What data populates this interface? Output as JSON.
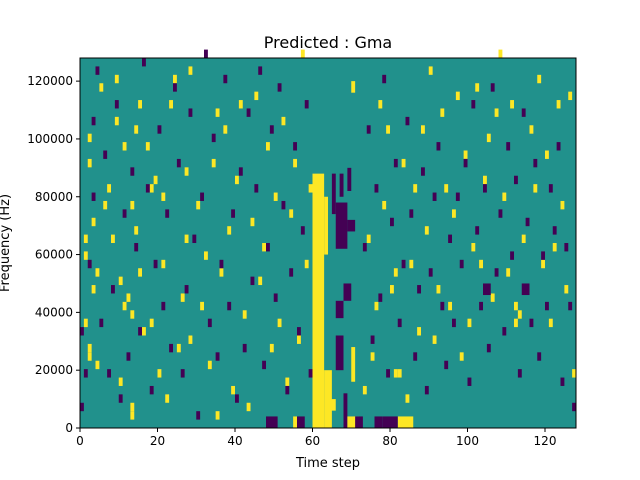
{
  "chart_data": {
    "type": "heatmap",
    "title": "Predicted : Gma",
    "xlabel": "Time step",
    "ylabel": "Frequency (Hz)",
    "xlim": [
      0,
      128
    ],
    "ylim": [
      0,
      128000
    ],
    "x_ticks": [
      0,
      20,
      40,
      60,
      80,
      100,
      120
    ],
    "y_ticks": [
      0,
      20000,
      40000,
      60000,
      80000,
      100000,
      120000
    ],
    "grid": false,
    "legend": "none",
    "colormap": "viridis",
    "colors": {
      "low": "#440154",
      "mid": "#21918c",
      "high": "#fde725"
    },
    "background_value": 0.5,
    "n_time_steps": 128,
    "n_freq_bins": 44,
    "freq_bin_hz": 2909,
    "runs": [
      {
        "x": [
          60,
          63
        ],
        "f": [
          0,
          88000
        ],
        "v": 1
      },
      {
        "x": [
          63,
          65
        ],
        "f": [
          0,
          20000
        ],
        "v": 1
      },
      {
        "x": [
          63,
          64
        ],
        "f": [
          60000,
          80000
        ],
        "v": 1
      },
      {
        "x": [
          64,
          66
        ],
        "f": [
          6000,
          10000
        ],
        "v": 1
      },
      {
        "x": [
          65,
          66
        ],
        "f": [
          74000,
          88000
        ],
        "v": 0
      },
      {
        "x": [
          66,
          68
        ],
        "f": [
          20000,
          32000
        ],
        "v": 0
      },
      {
        "x": [
          66,
          68
        ],
        "f": [
          38000,
          44000
        ],
        "v": 0
      },
      {
        "x": [
          66,
          69
        ],
        "f": [
          62000,
          78000
        ],
        "v": 0
      },
      {
        "x": [
          67,
          68
        ],
        "f": [
          80000,
          88000
        ],
        "v": 0
      },
      {
        "x": [
          68,
          69
        ],
        "f": [
          0,
          12000
        ],
        "v": 0
      },
      {
        "x": [
          68,
          70
        ],
        "f": [
          44000,
          50000
        ],
        "v": 0
      },
      {
        "x": [
          69,
          70
        ],
        "f": [
          82000,
          90000
        ],
        "v": 0
      },
      {
        "x": [
          69,
          71
        ],
        "f": [
          68000,
          72000
        ],
        "v": 0
      },
      {
        "x": [
          69,
          72
        ],
        "f": [
          0,
          4000
        ],
        "v": 1
      },
      {
        "x": [
          70,
          71
        ],
        "f": [
          16000,
          28000
        ],
        "v": 1
      },
      {
        "x": [
          71,
          73
        ],
        "f": [
          0,
          4000
        ],
        "v": 0
      },
      {
        "x": [
          48,
          51
        ],
        "f": [
          0,
          4000
        ],
        "v": 0
      },
      {
        "x": [
          82,
          86
        ],
        "f": [
          0,
          4000
        ],
        "v": 1
      },
      {
        "x": [
          78,
          82
        ],
        "f": [
          0,
          4000
        ],
        "v": 0
      },
      {
        "x": [
          76,
          78
        ],
        "f": [
          0,
          4000
        ],
        "v": 0
      },
      {
        "x": [
          70,
          71
        ],
        "f": [
          116000,
          120000
        ],
        "v": 1
      },
      {
        "x": [
          55,
          56
        ],
        "f": [
          0,
          4000
        ],
        "v": 1
      },
      {
        "x": [
          56,
          58
        ],
        "f": [
          0,
          4000
        ],
        "v": 0
      },
      {
        "x": [
          114,
          116
        ],
        "f": [
          46000,
          50000
        ],
        "v": 0
      },
      {
        "x": [
          104,
          106
        ],
        "f": [
          46000,
          50000
        ],
        "v": 0
      }
    ],
    "speckles": {
      "high": [
        [
          1,
          12
        ],
        [
          1,
          20
        ],
        [
          1,
          22
        ],
        [
          2,
          8
        ],
        [
          2,
          9
        ],
        [
          2,
          31
        ],
        [
          2,
          34
        ],
        [
          3,
          16
        ],
        [
          3,
          24
        ],
        [
          4,
          7
        ],
        [
          4,
          18
        ],
        [
          5,
          40
        ],
        [
          6,
          26
        ],
        [
          7,
          28
        ],
        [
          8,
          22
        ],
        [
          9,
          36
        ],
        [
          9,
          41
        ],
        [
          10,
          5
        ],
        [
          10,
          17
        ],
        [
          11,
          14
        ],
        [
          11,
          33
        ],
        [
          12,
          15
        ],
        [
          13,
          1
        ],
        [
          13,
          2
        ],
        [
          13,
          13
        ],
        [
          13,
          26
        ],
        [
          14,
          35
        ],
        [
          14,
          23
        ],
        [
          15,
          18
        ],
        [
          15,
          38
        ],
        [
          16,
          11
        ],
        [
          17,
          33
        ],
        [
          18,
          12
        ],
        [
          18,
          28
        ],
        [
          19,
          29
        ],
        [
          20,
          6
        ],
        [
          21,
          19
        ],
        [
          21,
          27
        ],
        [
          22,
          3
        ],
        [
          23,
          38
        ],
        [
          24,
          41
        ],
        [
          25,
          9
        ],
        [
          26,
          15
        ],
        [
          27,
          22
        ],
        [
          27,
          30
        ],
        [
          28,
          10
        ],
        [
          28,
          42
        ],
        [
          30,
          26
        ],
        [
          31,
          14
        ],
        [
          32,
          20
        ],
        [
          33,
          7
        ],
        [
          34,
          31
        ],
        [
          35,
          1
        ],
        [
          35,
          37
        ],
        [
          36,
          18
        ],
        [
          37,
          35
        ],
        [
          38,
          23
        ],
        [
          39,
          4
        ],
        [
          40,
          29
        ],
        [
          41,
          38
        ],
        [
          42,
          13
        ],
        [
          43,
          2
        ],
        [
          44,
          24
        ],
        [
          45,
          39
        ],
        [
          46,
          17
        ],
        [
          47,
          21
        ],
        [
          48,
          33
        ],
        [
          49,
          9
        ],
        [
          50,
          27
        ],
        [
          51,
          12
        ],
        [
          52,
          36
        ],
        [
          53,
          5
        ],
        [
          54,
          25
        ],
        [
          55,
          31
        ],
        [
          56,
          10
        ],
        [
          57,
          44
        ],
        [
          58,
          19
        ],
        [
          59,
          28
        ],
        [
          73,
          4
        ],
        [
          74,
          22
        ],
        [
          75,
          8
        ],
        [
          76,
          14
        ],
        [
          77,
          38
        ],
        [
          78,
          26
        ],
        [
          79,
          35
        ],
        [
          80,
          16
        ],
        [
          81,
          18
        ],
        [
          81,
          6
        ],
        [
          82,
          6
        ],
        [
          83,
          31
        ],
        [
          84,
          3
        ],
        [
          85,
          19
        ],
        [
          86,
          28
        ],
        [
          87,
          11
        ],
        [
          88,
          35
        ],
        [
          89,
          23
        ],
        [
          90,
          42
        ],
        [
          91,
          10
        ],
        [
          92,
          16
        ],
        [
          93,
          37
        ],
        [
          94,
          28
        ],
        [
          95,
          14
        ],
        [
          96,
          25
        ],
        [
          97,
          39
        ],
        [
          98,
          8
        ],
        [
          99,
          32
        ],
        [
          100,
          12
        ],
        [
          101,
          21
        ],
        [
          102,
          40
        ],
        [
          103,
          19
        ],
        [
          104,
          29
        ],
        [
          105,
          34
        ],
        [
          106,
          15
        ],
        [
          107,
          37
        ],
        [
          108,
          44
        ],
        [
          109,
          27
        ],
        [
          110,
          18
        ],
        [
          111,
          38
        ],
        [
          112,
          12
        ],
        [
          112,
          14
        ],
        [
          113,
          13
        ],
        [
          114,
          22
        ],
        [
          115,
          16
        ],
        [
          116,
          35
        ],
        [
          117,
          28
        ],
        [
          118,
          41
        ],
        [
          119,
          19
        ],
        [
          120,
          32
        ],
        [
          121,
          12
        ],
        [
          122,
          21
        ],
        [
          123,
          38
        ],
        [
          124,
          26
        ],
        [
          125,
          16
        ],
        [
          126,
          39
        ],
        [
          127,
          6
        ]
      ],
      "low": [
        [
          0,
          2
        ],
        [
          0,
          11
        ],
        [
          1,
          6
        ],
        [
          2,
          19
        ],
        [
          3,
          27
        ],
        [
          3,
          36
        ],
        [
          4,
          42
        ],
        [
          5,
          12
        ],
        [
          6,
          32
        ],
        [
          7,
          6
        ],
        [
          8,
          16
        ],
        [
          9,
          38
        ],
        [
          10,
          3
        ],
        [
          11,
          25
        ],
        [
          12,
          8
        ],
        [
          13,
          30
        ],
        [
          14,
          21
        ],
        [
          15,
          11
        ],
        [
          16,
          43
        ],
        [
          17,
          28
        ],
        [
          18,
          4
        ],
        [
          19,
          19
        ],
        [
          20,
          35
        ],
        [
          21,
          14
        ],
        [
          22,
          25
        ],
        [
          23,
          9
        ],
        [
          24,
          40
        ],
        [
          25,
          31
        ],
        [
          26,
          6
        ],
        [
          27,
          16
        ],
        [
          28,
          37
        ],
        [
          29,
          22
        ],
        [
          30,
          1
        ],
        [
          31,
          27
        ],
        [
          32,
          44
        ],
        [
          33,
          12
        ],
        [
          34,
          34
        ],
        [
          35,
          8
        ],
        [
          36,
          19
        ],
        [
          37,
          41
        ],
        [
          38,
          14
        ],
        [
          39,
          25
        ],
        [
          40,
          3
        ],
        [
          41,
          30
        ],
        [
          42,
          9
        ],
        [
          43,
          37
        ],
        [
          44,
          17
        ],
        [
          45,
          28
        ],
        [
          46,
          42
        ],
        [
          47,
          7
        ],
        [
          48,
          21
        ],
        [
          49,
          35
        ],
        [
          50,
          15
        ],
        [
          51,
          40
        ],
        [
          52,
          26
        ],
        [
          53,
          4
        ],
        [
          54,
          18
        ],
        [
          55,
          33
        ],
        [
          56,
          11
        ],
        [
          57,
          23
        ],
        [
          58,
          38
        ],
        [
          59,
          6
        ],
        [
          73,
          21
        ],
        [
          74,
          35
        ],
        [
          75,
          10
        ],
        [
          76,
          28
        ],
        [
          77,
          15
        ],
        [
          78,
          41
        ],
        [
          79,
          6
        ],
        [
          80,
          24
        ],
        [
          81,
          31
        ],
        [
          82,
          12
        ],
        [
          83,
          19
        ],
        [
          84,
          36
        ],
        [
          85,
          25
        ],
        [
          86,
          8
        ],
        [
          87,
          16
        ],
        [
          88,
          30
        ],
        [
          89,
          4
        ],
        [
          90,
          18
        ],
        [
          91,
          27
        ],
        [
          92,
          33
        ],
        [
          93,
          14
        ],
        [
          94,
          7
        ],
        [
          95,
          22
        ],
        [
          96,
          12
        ],
        [
          97,
          27
        ],
        [
          98,
          19
        ],
        [
          99,
          31
        ],
        [
          100,
          5
        ],
        [
          101,
          38
        ],
        [
          102,
          23
        ],
        [
          103,
          14
        ],
        [
          104,
          28
        ],
        [
          105,
          9
        ],
        [
          106,
          40
        ],
        [
          107,
          18
        ],
        [
          108,
          25
        ],
        [
          109,
          11
        ],
        [
          110,
          33
        ],
        [
          111,
          20
        ],
        [
          112,
          29
        ],
        [
          113,
          6
        ],
        [
          114,
          37
        ],
        [
          115,
          24
        ],
        [
          116,
          12
        ],
        [
          117,
          31
        ],
        [
          118,
          8
        ],
        [
          119,
          20
        ],
        [
          120,
          14
        ],
        [
          121,
          28
        ],
        [
          122,
          23
        ],
        [
          123,
          33
        ],
        [
          124,
          5
        ],
        [
          125,
          21
        ],
        [
          126,
          14
        ],
        [
          127,
          2
        ]
      ]
    }
  }
}
